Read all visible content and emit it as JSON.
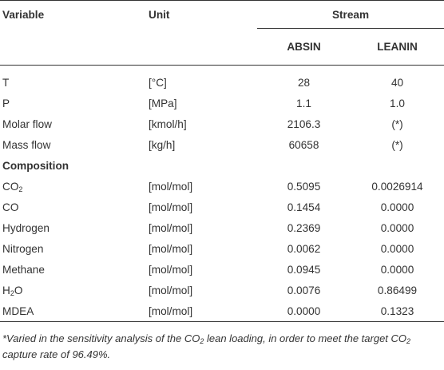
{
  "header": {
    "variable": "Variable",
    "unit": "Unit",
    "stream": "Stream",
    "absin": "ABSIN",
    "leanin": "LEANIN"
  },
  "rows": [
    {
      "variable": "T",
      "unit": "[°C]",
      "absin": "28",
      "leanin": "40"
    },
    {
      "variable": "P",
      "unit": "[MPa]",
      "absin": "1.1",
      "leanin": "1.0"
    },
    {
      "variable": "Molar flow",
      "unit": "[kmol/h]",
      "absin": "2106.3",
      "leanin": "(*)"
    },
    {
      "variable": "Mass flow",
      "unit": "[kg/h]",
      "absin": "60658",
      "leanin": "(*)"
    }
  ],
  "composition_label": "Composition",
  "composition": [
    {
      "variable": "CO",
      "sub": "2",
      "unit": "[mol/mol]",
      "absin": "0.5095",
      "leanin": "0.0026914"
    },
    {
      "variable": "CO",
      "sub": "",
      "unit": "[mol/mol]",
      "absin": "0.1454",
      "leanin": "0.0000"
    },
    {
      "variable": "Hydrogen",
      "sub": "",
      "unit": "[mol/mol]",
      "absin": "0.2369",
      "leanin": "0.0000"
    },
    {
      "variable": "Nitrogen",
      "sub": "",
      "unit": "[mol/mol]",
      "absin": "0.0062",
      "leanin": "0.0000"
    },
    {
      "variable": "Methane",
      "sub": "",
      "unit": "[mol/mol]",
      "absin": "0.0945",
      "leanin": "0.0000"
    },
    {
      "variable": "H",
      "sub": "2",
      "suffix": "O",
      "unit": "[mol/mol]",
      "absin": "0.0076",
      "leanin": "0.86499"
    },
    {
      "variable": "MDEA",
      "sub": "",
      "unit": "[mol/mol]",
      "absin": "0.0000",
      "leanin": "0.1323"
    }
  ],
  "footnote": {
    "part1": "*Varied in the sensitivity analysis of the CO",
    "sub1": "2",
    "part2": " lean loading, in order to meet the target CO",
    "sub2": "2",
    "part3": " capture rate of 96.49%."
  }
}
